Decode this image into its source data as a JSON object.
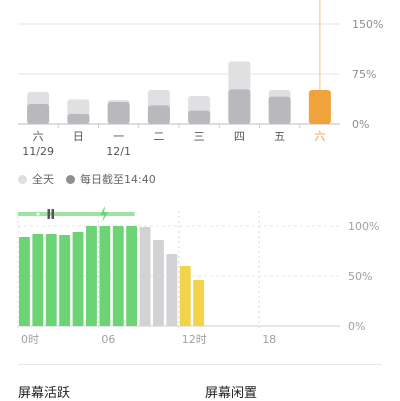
{
  "chart_data": [
    {
      "type": "bar",
      "categories": [
        "六",
        "日",
        "一",
        "二",
        "三",
        "四",
        "五",
        "六"
      ],
      "date_labels": [
        "11/29",
        "",
        "12/1",
        "",
        "",
        "",
        "",
        ""
      ],
      "series": [
        {
          "name": "全天",
          "values": [
            48,
            37,
            36,
            51,
            42,
            94,
            51,
            51
          ]
        },
        {
          "name": "每日截至14:40",
          "values": [
            30,
            15,
            33,
            28,
            20,
            52,
            41,
            51
          ]
        }
      ],
      "yticks": [
        "0%",
        "75%",
        "150%"
      ],
      "ylim": [
        0,
        150
      ],
      "highlight_index": 7,
      "colors": {
        "all_day": "#e0e0e2",
        "to_time": "#b9b9bd",
        "today": "#f0a33a",
        "marker": "#e8c979"
      }
    },
    {
      "type": "bar",
      "x": [
        0,
        1,
        2,
        3,
        4,
        5,
        6,
        7,
        8,
        9,
        10,
        11,
        12,
        13
      ],
      "values": [
        89,
        92,
        92,
        91,
        94,
        100,
        100,
        100,
        100,
        99,
        86,
        72,
        60,
        46
      ],
      "xticks": [
        "0时",
        "06",
        "12时",
        "18"
      ],
      "yticks": [
        "0%",
        "50%",
        "100%"
      ],
      "ylim": [
        0,
        100
      ],
      "colors": {
        "plugged": "#6cd474",
        "unplugged": "#d3d3d6",
        "low": "#f3d34a",
        "charge_band": "#6cd474"
      }
    }
  ],
  "legend": {
    "all_day": {
      "label": "全天",
      "color": "#dedee0"
    },
    "to_time": {
      "label": "每日截至14:40",
      "color": "#8e8e93"
    }
  },
  "footer": {
    "screen_active": "屏幕活跃",
    "screen_idle": "屏幕闲置"
  }
}
